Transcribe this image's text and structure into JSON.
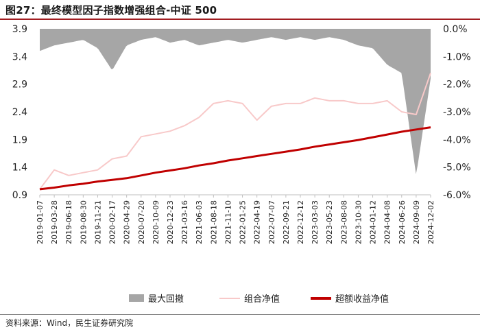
{
  "header": {
    "title": "图27：最终模型因子指数增强组合-中证 500"
  },
  "footer": {
    "source": "资料来源：Wind，民生证券研究院"
  },
  "colors": {
    "drawdown": "#a6a6a6",
    "portfolio": "#f8c9c9",
    "excess": "#c00000",
    "accent": "#a21d21"
  },
  "chart_data": {
    "type": "line",
    "x_ticks": [
      "2019-01-07",
      "2019-03-28",
      "2019-06-18",
      "2019-08-30",
      "2019-11-21",
      "2020-02-17",
      "2020-04-29",
      "2020-07-20",
      "2020-10-09",
      "2020-12-23",
      "2021-03-16",
      "2021-06-03",
      "2021-08-18",
      "2021-11-10",
      "2022-01-25",
      "2022-04-19",
      "2022-07-07",
      "2022-09-21",
      "2022-12-12",
      "2023-03-03",
      "2023-05-23",
      "2023-08-08",
      "2023-10-30",
      "2024-01-12",
      "2024-04-08",
      "2024-06-26",
      "2024-09-09",
      "2024-12-02"
    ],
    "y_left": {
      "ticks": [
        "0.9",
        "1.4",
        "1.9",
        "2.4",
        "2.9",
        "3.4",
        "3.9"
      ],
      "range": [
        0.9,
        3.9
      ]
    },
    "y_right": {
      "ticks": [
        "0.0%",
        "-1.0%",
        "-2.0%",
        "-3.0%",
        "-4.0%",
        "-5.0%",
        "-6.0%"
      ],
      "range": [
        0,
        -6
      ]
    },
    "legend": [
      "最大回撤",
      "组合净值",
      "超额收益净值"
    ],
    "series": [
      {
        "name": "组合净值",
        "axis": "left",
        "t": [
          0,
          1,
          2,
          3,
          4,
          5,
          6,
          7,
          8,
          9,
          10,
          11,
          12,
          13,
          14,
          15,
          16,
          17,
          18,
          19,
          20,
          21,
          22,
          23,
          24,
          25,
          26,
          27
        ],
        "values": [
          1.0,
          1.35,
          1.25,
          1.3,
          1.35,
          1.55,
          1.6,
          1.95,
          2.0,
          2.05,
          2.15,
          2.3,
          2.55,
          2.6,
          2.55,
          2.25,
          2.5,
          2.55,
          2.55,
          2.65,
          2.6,
          2.6,
          2.55,
          2.55,
          2.6,
          2.4,
          2.35,
          3.1
        ]
      },
      {
        "name": "超额收益净值",
        "axis": "left",
        "t": [
          0,
          1,
          2,
          3,
          4,
          5,
          6,
          7,
          8,
          9,
          10,
          11,
          12,
          13,
          14,
          15,
          16,
          17,
          18,
          19,
          20,
          21,
          22,
          23,
          24,
          25,
          26,
          27
        ],
        "values": [
          1.0,
          1.03,
          1.07,
          1.1,
          1.14,
          1.17,
          1.2,
          1.25,
          1.3,
          1.34,
          1.38,
          1.43,
          1.47,
          1.52,
          1.56,
          1.6,
          1.64,
          1.68,
          1.72,
          1.77,
          1.81,
          1.85,
          1.89,
          1.94,
          1.99,
          2.04,
          2.08,
          2.12
        ]
      },
      {
        "name": "最大回撤",
        "axis": "right",
        "t": [
          0,
          1,
          2,
          3,
          4,
          5,
          6,
          7,
          8,
          9,
          10,
          11,
          12,
          13,
          14,
          15,
          16,
          17,
          18,
          19,
          20,
          21,
          22,
          23,
          24,
          25,
          26,
          27
        ],
        "values": [
          -0.8,
          -0.6,
          -0.5,
          -0.4,
          -0.7,
          -1.5,
          -0.6,
          -0.4,
          -0.3,
          -0.5,
          -0.4,
          -0.6,
          -0.5,
          -0.4,
          -0.5,
          -0.4,
          -0.3,
          -0.4,
          -0.3,
          -0.4,
          -0.3,
          -0.4,
          -0.6,
          -0.7,
          -1.3,
          -1.6,
          -5.3,
          -1.8
        ]
      }
    ]
  }
}
